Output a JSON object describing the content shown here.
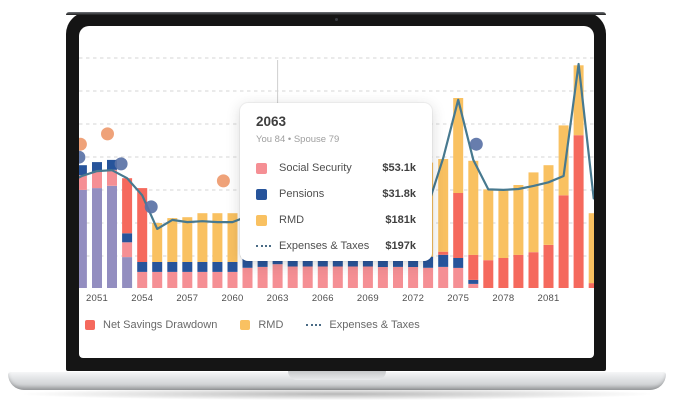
{
  "tooltip": {
    "title": "2063",
    "subtitle": "You 84 • Spouse 79",
    "rows": [
      {
        "label": "Social Security",
        "value": "$53.1k",
        "swatch": "#F58F94",
        "icon": "square"
      },
      {
        "label": "Pensions",
        "value": "$31.8k",
        "swatch": "#27549B",
        "icon": "square"
      },
      {
        "label": "RMD",
        "value": "$181k",
        "swatch": "#F9C161",
        "icon": "square"
      },
      {
        "label": "Expenses & Taxes",
        "value": "$197k",
        "swatch": "#4A6B85",
        "icon": "dashed-line"
      }
    ]
  },
  "legend": {
    "items": [
      {
        "label": "Net Savings Drawdown",
        "swatch": "#F5695D",
        "icon": "square"
      },
      {
        "label": "RMD",
        "swatch": "#F9C161",
        "icon": "square"
      },
      {
        "label": "Expenses & Taxes",
        "swatch": "#4A6B85",
        "icon": "dashed-line"
      }
    ]
  },
  "chart_data": {
    "type": "combo-stacked-bar-line-scatter",
    "units": "USD thousands ($k)",
    "years": [
      2049,
      2050,
      2051,
      2052,
      2053,
      2054,
      2055,
      2056,
      2057,
      2058,
      2059,
      2060,
      2061,
      2062,
      2063,
      2064,
      2065,
      2066,
      2067,
      2068,
      2069,
      2070,
      2071,
      2072,
      2073,
      2074,
      2075,
      2076,
      2077,
      2078,
      2079,
      2080,
      2081,
      2082,
      2083,
      2084
    ],
    "x_tick_labels": [
      "2051",
      "2054",
      "2057",
      "2060",
      "2063",
      "2066",
      "2069",
      "2072",
      "2075",
      "2078",
      "2081"
    ],
    "ylim": [
      0,
      580
    ],
    "grid": "horizontal-dashed",
    "hover_year": 2063,
    "stack_order": "bar series stack bottom-to-top in the order listed",
    "series": [
      {
        "name": "unlabeled-purple-income",
        "type": "bar",
        "color": "#938EC0",
        "values": [
          207,
          219,
          223,
          228,
          69,
          0,
          0,
          0,
          0,
          0,
          0,
          0,
          0,
          0,
          0,
          0,
          0,
          0,
          0,
          0,
          0,
          0,
          0,
          0,
          0,
          0,
          0,
          0,
          0,
          0,
          0,
          0,
          0,
          0,
          0,
          0
        ]
      },
      {
        "name": "Social Security",
        "type": "bar",
        "color": "#F58F94",
        "values": [
          33,
          33,
          36,
          36,
          33,
          36,
          36,
          36,
          36,
          36,
          36,
          36,
          45,
          47,
          53.1,
          48,
          48,
          48,
          48,
          48,
          48,
          47,
          47,
          47,
          45,
          47,
          45,
          9,
          0,
          0,
          0,
          0,
          0,
          0,
          0,
          0
        ]
      },
      {
        "name": "Pensions",
        "type": "bar",
        "color": "#27549B",
        "values": [
          22,
          22,
          22,
          22,
          20,
          22,
          22,
          22,
          22,
          22,
          22,
          22,
          21,
          21,
          31.8,
          22,
          22,
          22,
          22,
          22,
          22,
          22,
          21,
          20,
          25,
          27,
          22,
          9,
          0,
          0,
          0,
          0,
          0,
          0,
          0,
          0
        ]
      },
      {
        "name": "Net Savings Drawdown",
        "type": "bar",
        "color": "#F5695D",
        "values": [
          0,
          0,
          0,
          0,
          123,
          165,
          0,
          0,
          0,
          0,
          0,
          0,
          0,
          0,
          0,
          0,
          0,
          0,
          0,
          0,
          0,
          0,
          0,
          0,
          0,
          7,
          145,
          56,
          62,
          67,
          74,
          80,
          96,
          207,
          341,
          11
        ]
      },
      {
        "name": "RMD",
        "type": "bar",
        "color": "#F9C161",
        "values": [
          0,
          0,
          0,
          0,
          0,
          0,
          87,
          98,
          100,
          109,
          109,
          109,
          120,
          150,
          181,
          160,
          165,
          168,
          170,
          172,
          174,
          176,
          178,
          212,
          210,
          207,
          212,
          210,
          158,
          152,
          156,
          178,
          178,
          156,
          156,
          156
        ]
      },
      {
        "name": "Expenses & Taxes",
        "type": "line",
        "color": "#47798F",
        "values": [
          234,
          250,
          261,
          263,
          245,
          207,
          132,
          152,
          147,
          149,
          147,
          147,
          160,
          180,
          197,
          193,
          190,
          187,
          184,
          182,
          180,
          177,
          175,
          174,
          185,
          290,
          420,
          286,
          220,
          219,
          221,
          228,
          236,
          250,
          500,
          200
        ]
      }
    ],
    "scatter": [
      {
        "name": "orange-dots",
        "color": "#EE9A6E",
        "points": [
          [
            2049.9,
            321
          ],
          [
            2051.7,
            344
          ],
          [
            2059.4,
            239
          ]
        ]
      },
      {
        "name": "blue-dots",
        "color": "#5A72A6",
        "points": [
          [
            2049.8,
            292
          ],
          [
            2052.6,
            277
          ],
          [
            2054.6,
            181
          ],
          [
            2076.2,
            321
          ]
        ]
      }
    ],
    "style": {
      "grid_color": "#DEDEDE",
      "guide_color": "#CFCFCF",
      "tick_color": "#4F4F4F"
    }
  }
}
